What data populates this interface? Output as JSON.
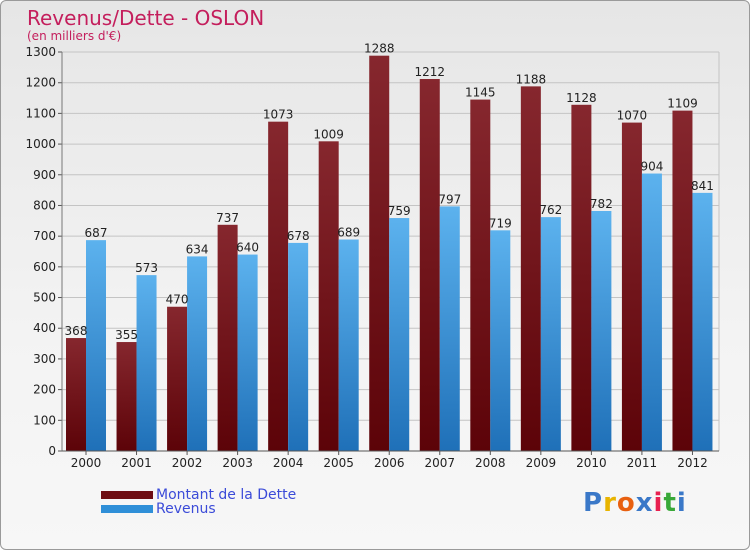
{
  "header": {
    "title": "Revenus/Dette - OSLON",
    "subtitle": "(en milliers d'€)"
  },
  "legend": {
    "items": [
      {
        "label": "Montant de la Dette",
        "color": "#6e0d12"
      },
      {
        "label": "Revenus",
        "color": "#2f8fd8"
      }
    ]
  },
  "logo": {
    "text": "Proxiti",
    "colors": [
      "#3a78c8",
      "#e8b400",
      "#e86010",
      "#3a78c8",
      "#e82050",
      "#39a838",
      "#3a78c8"
    ]
  },
  "chart_data": {
    "type": "bar",
    "title": "Revenus/Dette - OSLON",
    "ylabel": "(en milliers d'€)",
    "xlabel": "",
    "categories": [
      "2000",
      "2001",
      "2002",
      "2003",
      "2004",
      "2005",
      "2006",
      "2007",
      "2008",
      "2009",
      "2010",
      "2011",
      "2012"
    ],
    "series": [
      {
        "name": "Montant de la Dette",
        "color": "#7a1a22",
        "values": [
          368,
          355,
          470,
          737,
          1073,
          1009,
          1288,
          1212,
          1145,
          1188,
          1128,
          1070,
          1109
        ]
      },
      {
        "name": "Revenus",
        "color": "#4aa6e8",
        "values": [
          687,
          573,
          634,
          640,
          678,
          689,
          759,
          797,
          719,
          762,
          782,
          904,
          841
        ]
      }
    ],
    "ylim": [
      0,
      1300
    ],
    "yticks": [
      0,
      100,
      200,
      300,
      400,
      500,
      600,
      700,
      800,
      900,
      1000,
      1100,
      1200,
      1300
    ],
    "grid": true,
    "legend_position": "bottom-left"
  }
}
